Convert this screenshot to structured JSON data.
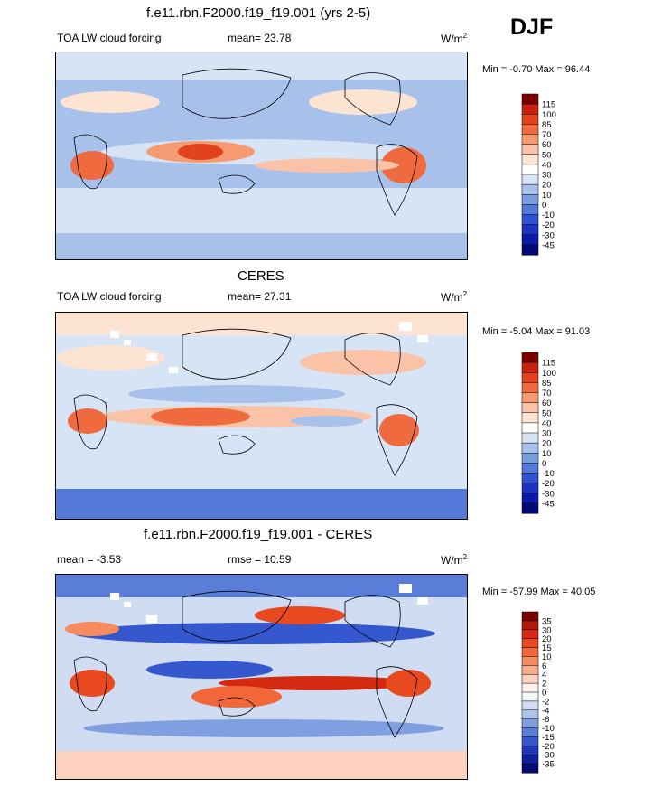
{
  "season": "DJF",
  "units_base": "W/m",
  "units_exp": "2",
  "panels": [
    {
      "title": "f.e11.rbn.F2000.f19_f19.001 (yrs 2-5)",
      "left_label": "TOA LW cloud forcing",
      "stat_label": "mean=  23.78",
      "minmax": "Min =  -0.70 Max =  96.44"
    },
    {
      "title": "CERES",
      "left_label": "TOA LW cloud forcing",
      "stat_label": "mean=  27.31",
      "minmax": "Min =  -5.04 Max =  91.03"
    },
    {
      "title": "f.e11.rbn.F2000.f19_f19.001 - CERES",
      "left_label": "mean =  -3.53",
      "stat_label": "rmse =  10.59",
      "minmax": "Min = -57.99 Max =  40.05"
    }
  ],
  "chart_data": [
    {
      "type": "heatmap",
      "title": "f.e11.rbn.F2000.f19_f19.001 (yrs 2-5)",
      "variable": "TOA LW cloud forcing",
      "mean": 23.78,
      "min": -0.7,
      "max": 96.44,
      "colorbar_levels": [
        "115",
        "100",
        "85",
        "70",
        "60",
        "50",
        "40",
        "30",
        "20",
        "10",
        "0",
        "-10",
        "-20",
        "-30",
        "-45"
      ],
      "colorbar_colors": [
        "#7a0000",
        "#c8200e",
        "#e2431c",
        "#ef6a3f",
        "#f69a72",
        "#fac3a8",
        "#fde3d2",
        "#ffffff",
        "#d7e4f6",
        "#a7c1ea",
        "#7a9fde",
        "#5279d8",
        "#2f52d4",
        "#1b33c4",
        "#0a1aa8",
        "#030a78"
      ]
    },
    {
      "type": "heatmap",
      "title": "CERES",
      "variable": "TOA LW cloud forcing",
      "mean": 27.31,
      "min": -5.04,
      "max": 91.03,
      "colorbar_levels": [
        "115",
        "100",
        "85",
        "70",
        "60",
        "50",
        "40",
        "30",
        "20",
        "10",
        "0",
        "-10",
        "-20",
        "-30",
        "-45"
      ],
      "colorbar_colors": [
        "#7a0000",
        "#c8200e",
        "#e2431c",
        "#ef6a3f",
        "#f69a72",
        "#fac3a8",
        "#fde3d2",
        "#ffffff",
        "#d7e4f6",
        "#a7c1ea",
        "#7a9fde",
        "#5279d8",
        "#2f52d4",
        "#1b33c4",
        "#0a1aa8",
        "#030a78"
      ]
    },
    {
      "type": "heatmap",
      "title": "f.e11.rbn.F2000.f19_f19.001 - CERES",
      "mean": -3.53,
      "rmse": 10.59,
      "min": -57.99,
      "max": 40.05,
      "colorbar_levels": [
        "35",
        "30",
        "20",
        "15",
        "10",
        "6",
        "4",
        "2",
        "0",
        "-2",
        "-4",
        "-6",
        "-10",
        "-15",
        "-20",
        "-30",
        "-35"
      ],
      "colorbar_colors": [
        "#7a0000",
        "#b0180a",
        "#d42a12",
        "#e8491f",
        "#f1673a",
        "#f68b5f",
        "#f9ad8c",
        "#fcd1bd",
        "#fff1ea",
        "#f3f6fb",
        "#cfdcf2",
        "#aec3ea",
        "#7f9fe0",
        "#5a7ed8",
        "#3558cf",
        "#1c36bd",
        "#0c1f9c",
        "#030a70"
      ]
    }
  ]
}
